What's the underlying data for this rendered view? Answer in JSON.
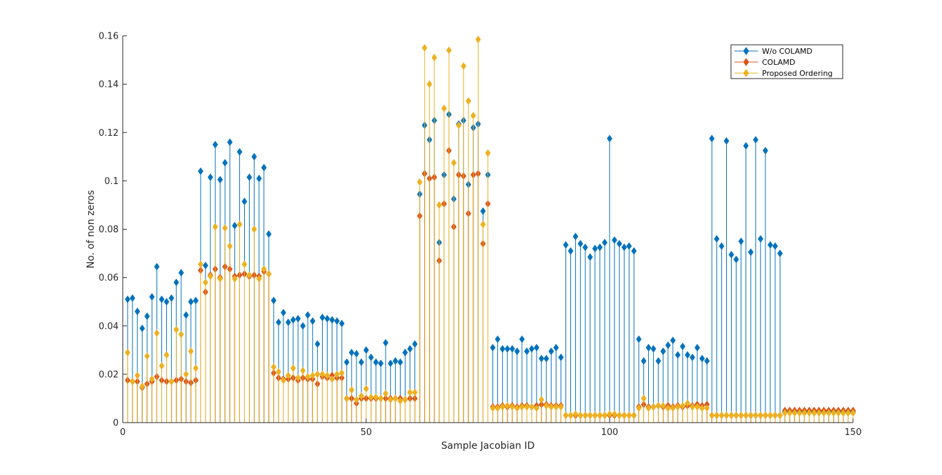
{
  "chart_data": {
    "type": "stem",
    "xlabel": "Sample Jacobian ID",
    "ylabel": "No. of non zeros",
    "xlim": [
      0,
      150
    ],
    "ylim": [
      0,
      0.16
    ],
    "xticks": [
      "0",
      "50",
      "100",
      "150"
    ],
    "yticks": [
      "0",
      "0.02",
      "0.04",
      "0.06",
      "0.08",
      "0.1",
      "0.12",
      "0.14",
      "0.16"
    ],
    "grid": false,
    "legend_position": "top-right",
    "x_range": [
      1,
      150
    ],
    "series": [
      {
        "name": "W/o COLAMD",
        "color": "#0072BD",
        "values": [
          0.051,
          0.0515,
          0.046,
          0.039,
          0.044,
          0.052,
          0.0645,
          0.051,
          0.05,
          0.0515,
          0.058,
          0.062,
          0.0445,
          0.05,
          0.0505,
          0.104,
          0.065,
          0.1015,
          0.115,
          0.1005,
          0.1075,
          0.116,
          0.0815,
          0.112,
          0.0915,
          0.1015,
          0.11,
          0.101,
          0.1055,
          0.078,
          0.0505,
          0.0415,
          0.0455,
          0.0415,
          0.0425,
          0.043,
          0.04,
          0.0445,
          0.042,
          0.0325,
          0.0435,
          0.043,
          0.0425,
          0.042,
          0.041,
          0.025,
          0.029,
          0.0285,
          0.025,
          0.03,
          0.027,
          0.025,
          0.0245,
          0.033,
          0.0245,
          0.0255,
          0.025,
          0.029,
          0.0305,
          0.0325,
          0.0945,
          0.123,
          0.117,
          0.125,
          0.0745,
          0.1025,
          0.1275,
          0.0925,
          0.1235,
          0.125,
          0.0985,
          0.122,
          0.1235,
          0.0875,
          0.1025,
          0.031,
          0.0345,
          0.0305,
          0.0305,
          0.0305,
          0.0295,
          0.0345,
          0.0295,
          0.0305,
          0.031,
          0.0265,
          0.0265,
          0.0295,
          0.031,
          0.027,
          0.0735,
          0.071,
          0.077,
          0.074,
          0.0725,
          0.0685,
          0.072,
          0.0725,
          0.0745,
          0.1175,
          0.0755,
          0.074,
          0.0725,
          0.073,
          0.071,
          0.0345,
          0.0255,
          0.031,
          0.0305,
          0.0255,
          0.0295,
          0.032,
          0.034,
          0.028,
          0.0315,
          0.028,
          0.027,
          0.031,
          0.0265,
          0.0255,
          0.1175,
          0.076,
          0.073,
          0.1165,
          0.0695,
          0.0675,
          0.075,
          0.1145,
          0.0705,
          0.117,
          0.076,
          0.1125,
          0.0735,
          0.073,
          0.07,
          0.0045,
          0.0045,
          0.0045,
          0.0045,
          0.0045,
          0.0045,
          0.0045,
          0.0045,
          0.0045,
          0.0045,
          0.0045,
          0.0045,
          0.0045,
          0.0045,
          0.0045
        ]
      },
      {
        "name": "COLAMD",
        "color": "#D95319",
        "values": [
          0.0175,
          0.017,
          0.017,
          0.0145,
          0.016,
          0.017,
          0.019,
          0.0175,
          0.017,
          0.017,
          0.0175,
          0.018,
          0.017,
          0.0165,
          0.0175,
          0.063,
          0.054,
          0.061,
          0.0635,
          0.06,
          0.0645,
          0.0635,
          0.0605,
          0.061,
          0.0615,
          0.0605,
          0.061,
          0.0605,
          0.0625,
          0.0615,
          0.0205,
          0.0185,
          0.018,
          0.018,
          0.0185,
          0.0175,
          0.0185,
          0.018,
          0.018,
          0.016,
          0.019,
          0.0185,
          0.0195,
          0.0185,
          0.0185,
          0.01,
          0.01,
          0.008,
          0.01,
          0.01,
          0.01,
          0.01,
          0.01,
          0.01,
          0.01,
          0.01,
          0.01,
          0.0095,
          0.01,
          0.01,
          0.0855,
          0.103,
          0.101,
          0.1015,
          0.067,
          0.0905,
          0.1125,
          0.081,
          0.1025,
          0.102,
          0.0865,
          0.1025,
          0.103,
          0.074,
          0.0905,
          0.0065,
          0.0065,
          0.007,
          0.0065,
          0.007,
          0.0065,
          0.007,
          0.007,
          0.0065,
          0.007,
          0.0075,
          0.0075,
          0.007,
          0.007,
          0.007,
          0.003,
          0.003,
          0.003,
          0.003,
          0.003,
          0.003,
          0.003,
          0.003,
          0.003,
          0.003,
          0.003,
          0.003,
          0.003,
          0.003,
          0.003,
          0.0065,
          0.0075,
          0.0065,
          0.0065,
          0.007,
          0.0065,
          0.007,
          0.0065,
          0.007,
          0.0065,
          0.007,
          0.007,
          0.0075,
          0.007,
          0.0075,
          0.003,
          0.003,
          0.003,
          0.003,
          0.003,
          0.003,
          0.003,
          0.003,
          0.003,
          0.003,
          0.003,
          0.003,
          0.003,
          0.003,
          0.003,
          0.005,
          0.005,
          0.005,
          0.005,
          0.005,
          0.005,
          0.005,
          0.005,
          0.005,
          0.005,
          0.005,
          0.005,
          0.005,
          0.005,
          0.005
        ]
      },
      {
        "name": "Proposed Ordering",
        "color": "#EDB120",
        "values": [
          0.029,
          0.017,
          0.0195,
          0.015,
          0.0275,
          0.018,
          0.037,
          0.0235,
          0.028,
          0.017,
          0.0385,
          0.0365,
          0.02,
          0.0295,
          0.0225,
          0.0655,
          0.058,
          0.0605,
          0.081,
          0.0595,
          0.0805,
          0.073,
          0.0595,
          0.082,
          0.0655,
          0.061,
          0.08,
          0.0595,
          0.0635,
          0.0615,
          0.023,
          0.021,
          0.0175,
          0.0195,
          0.0225,
          0.0185,
          0.0215,
          0.019,
          0.0195,
          0.02,
          0.02,
          0.0195,
          0.018,
          0.02,
          0.0205,
          0.01,
          0.0135,
          0.0095,
          0.011,
          0.014,
          0.0105,
          0.0105,
          0.01,
          0.012,
          0.0095,
          0.01,
          0.009,
          0.0095,
          0.0125,
          0.0125,
          0.0995,
          0.155,
          0.14,
          0.151,
          0.09,
          0.13,
          0.154,
          0.1075,
          0.123,
          0.1475,
          0.133,
          0.127,
          0.1585,
          0.082,
          0.1115,
          0.006,
          0.006,
          0.0065,
          0.007,
          0.0065,
          0.006,
          0.0065,
          0.0065,
          0.0065,
          0.006,
          0.0095,
          0.007,
          0.0065,
          0.0065,
          0.0065,
          0.003,
          0.003,
          0.0035,
          0.003,
          0.003,
          0.003,
          0.003,
          0.003,
          0.003,
          0.0035,
          0.0035,
          0.003,
          0.003,
          0.003,
          0.003,
          0.006,
          0.01,
          0.006,
          0.0065,
          0.007,
          0.007,
          0.006,
          0.006,
          0.0065,
          0.007,
          0.008,
          0.0065,
          0.0065,
          0.006,
          0.006,
          0.003,
          0.003,
          0.003,
          0.003,
          0.003,
          0.003,
          0.003,
          0.003,
          0.003,
          0.003,
          0.003,
          0.003,
          0.003,
          0.003,
          0.003,
          0.004,
          0.004,
          0.004,
          0.004,
          0.004,
          0.004,
          0.004,
          0.004,
          0.004,
          0.004,
          0.004,
          0.004,
          0.004,
          0.004,
          0.004
        ]
      }
    ]
  }
}
